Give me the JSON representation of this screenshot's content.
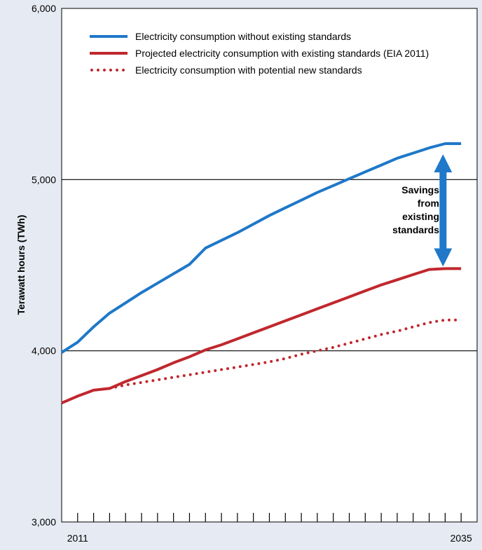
{
  "chart_data": {
    "type": "line",
    "ylabel": "Terawatt hours (TWh)",
    "xlabel": "",
    "ylim": [
      3000,
      6000
    ],
    "xlim": [
      2011,
      2035
    ],
    "y_ticks": [
      3000,
      4000,
      5000,
      6000
    ],
    "y_tick_labels": [
      "3,000",
      "4,000",
      "5,000",
      "6,000"
    ],
    "x_tick_labels": [
      {
        "x": 2011,
        "label": "2011"
      },
      {
        "x": 2035,
        "label": "2035"
      }
    ],
    "grid": "horizontal",
    "legend_position": "top",
    "series": [
      {
        "name": "Electricity consumption without existing standards",
        "color": "#1f78c8",
        "style": "solid",
        "x": [
          2010,
          2011,
          2012,
          2013,
          2014,
          2015,
          2016,
          2017,
          2018,
          2019,
          2020,
          2021,
          2022,
          2023,
          2024,
          2025,
          2026,
          2027,
          2028,
          2029,
          2030,
          2031,
          2032,
          2033,
          2034,
          2035
        ],
        "values": [
          3990,
          4050,
          4140,
          4220,
          4280,
          4340,
          4395,
          4450,
          4505,
          4600,
          4645,
          4690,
          4740,
          4790,
          4835,
          4880,
          4925,
          4965,
          5005,
          5045,
          5085,
          5125,
          5155,
          5185,
          5210,
          5210
        ]
      },
      {
        "name": "Projected electricity consumption with existing standards (EIA 2011)",
        "color": "#c0272d",
        "style": "solid",
        "x": [
          2010,
          2011,
          2012,
          2013,
          2014,
          2015,
          2016,
          2017,
          2018,
          2019,
          2020,
          2021,
          2022,
          2023,
          2024,
          2025,
          2026,
          2027,
          2028,
          2029,
          2030,
          2031,
          2032,
          2033,
          2034,
          2035
        ],
        "values": [
          3695,
          3735,
          3770,
          3780,
          3820,
          3855,
          3890,
          3930,
          3965,
          4005,
          4035,
          4070,
          4105,
          4140,
          4175,
          4210,
          4245,
          4280,
          4315,
          4350,
          4385,
          4415,
          4445,
          4475,
          4480,
          4480
        ]
      },
      {
        "name": "Electricity consumption with potential new standards",
        "color": "#c0272d",
        "style": "dotted",
        "x": [
          2013,
          2014,
          2015,
          2016,
          2017,
          2018,
          2019,
          2020,
          2021,
          2022,
          2023,
          2024,
          2025,
          2026,
          2027,
          2028,
          2029,
          2030,
          2031,
          2032,
          2033,
          2034,
          2035
        ],
        "values": [
          3780,
          3800,
          3815,
          3830,
          3845,
          3860,
          3875,
          3890,
          3905,
          3920,
          3935,
          3955,
          3980,
          4000,
          4020,
          4045,
          4070,
          4095,
          4115,
          4140,
          4165,
          4180,
          4180
        ]
      }
    ],
    "annotation": {
      "text_lines": [
        "Savings",
        "from",
        "existing",
        "standards"
      ],
      "x": 2034,
      "y_from": 4480,
      "y_to": 5160,
      "color": "#1f78c8"
    }
  }
}
